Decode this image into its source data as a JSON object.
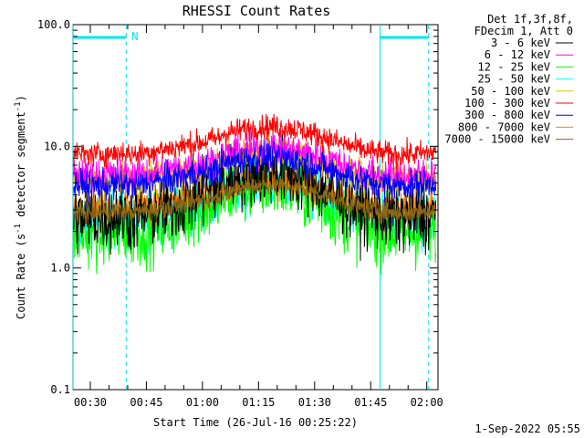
{
  "chart_data": {
    "type": "line",
    "title": "RHESSI Count Rates",
    "xlabel": "Start Time (26-Jul-16 00:25:22)",
    "ylabel_main": "Count Rate (s",
    "ylabel_sup1": "-1",
    "ylabel_mid": " detector segment",
    "ylabel_sup2": "-1",
    "ylabel_end": ")",
    "y_scale": "log",
    "ylim": [
      0.1,
      100
    ],
    "y_ticks": [
      {
        "value": 0.1,
        "label": "0.1"
      },
      {
        "value": 1,
        "label": "1.0"
      },
      {
        "value": 10,
        "label": "10.0"
      },
      {
        "value": 100,
        "label": "100.0"
      }
    ],
    "xlim_minutes": [
      25.37,
      123.0
    ],
    "x_ticks": [
      {
        "minute": 30,
        "label": "00:30"
      },
      {
        "minute": 45,
        "label": "00:45"
      },
      {
        "minute": 60,
        "label": "01:00"
      },
      {
        "minute": 75,
        "label": "01:15"
      },
      {
        "minute": 90,
        "label": "01:30"
      },
      {
        "minute": 105,
        "label": "01:45"
      },
      {
        "minute": 120,
        "label": "02:00"
      }
    ],
    "night_intervals": [
      [
        25.4,
        39.6
      ],
      [
        107.5,
        120.5
      ]
    ],
    "night_marker_label": "N",
    "legend_header": [
      "Det 1f,3f,8f,",
      "FDecim 1, Att 0"
    ],
    "series": [
      {
        "name": "3 - 6 keV",
        "color": "#000000",
        "base": 2.7,
        "peak": 6.5,
        "noise": 0.14
      },
      {
        "name": "6 - 12 keV",
        "color": "#ff00ff",
        "base": 6.0,
        "peak": 10.0,
        "noise": 0.07
      },
      {
        "name": "12 - 25 keV",
        "color": "#00ff00",
        "base": 2.0,
        "peak": 5.0,
        "noise": 0.14
      },
      {
        "name": "25 - 50 keV",
        "color": "#00ffff",
        "base": 2.6,
        "peak": 5.5,
        "noise": 0.12
      },
      {
        "name": "50 - 100 keV",
        "color": "#e0c000",
        "base": 5.5,
        "peak": 9.0,
        "noise": 0.07
      },
      {
        "name": "100 - 300 keV",
        "color": "#ff0000",
        "base": 9.0,
        "peak": 15.0,
        "noise": 0.05
      },
      {
        "name": "300 - 800 keV",
        "color": "#0000ff",
        "base": 5.0,
        "peak": 8.5,
        "noise": 0.06
      },
      {
        "name": "800 - 7000 keV",
        "color": "#ff8000",
        "base": 3.3,
        "peak": 5.5,
        "noise": 0.07
      },
      {
        "name": "7000 - 15000 keV",
        "color": "#8b6914",
        "base": 3.0,
        "peak": 5.0,
        "noise": 0.04
      }
    ],
    "peak_minute": 76,
    "timestamp": "1-Sep-2022 05:55"
  }
}
